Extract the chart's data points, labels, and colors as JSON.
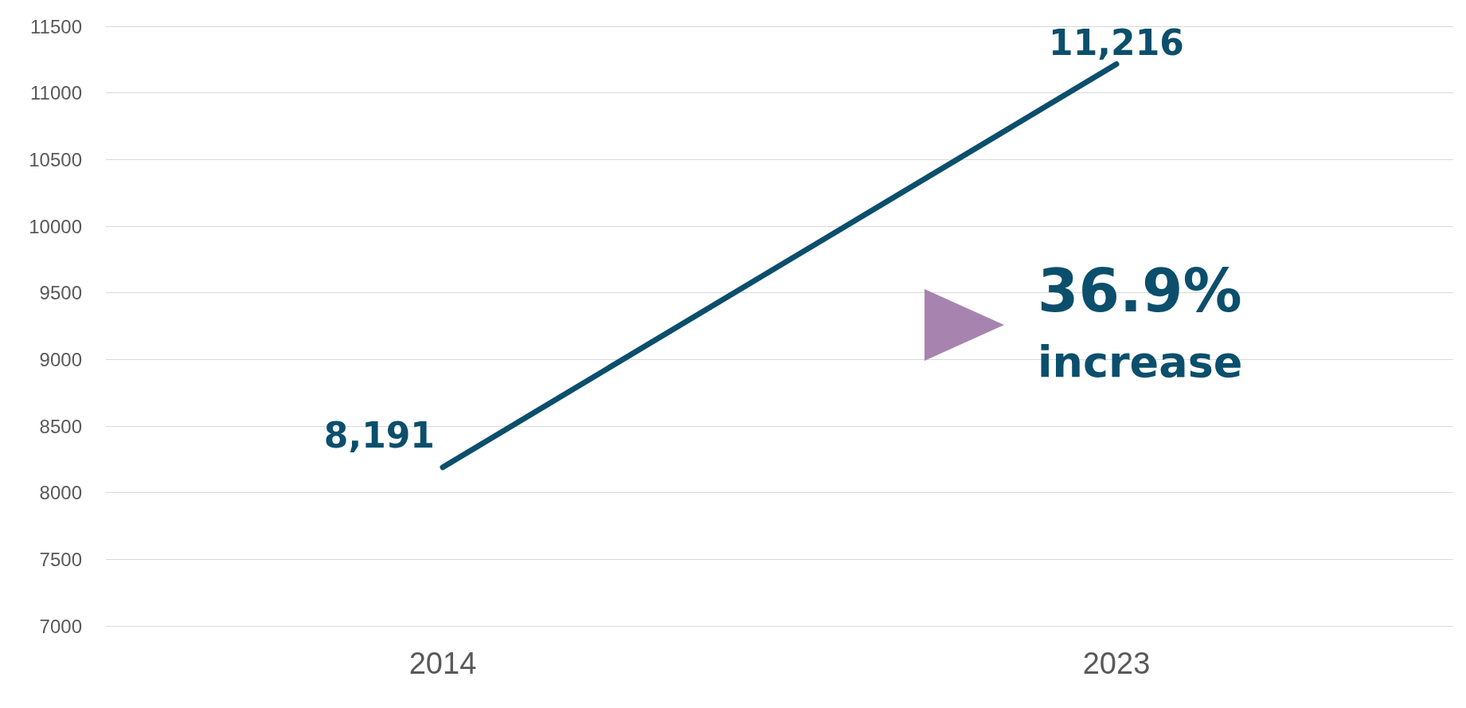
{
  "chart_data": {
    "type": "line",
    "categories": [
      "2014",
      "2023"
    ],
    "series": [
      {
        "color": "#0b4f6c",
        "values": [
          8191,
          11216
        ],
        "value_labels": [
          "8,191",
          "11,216"
        ]
      }
    ],
    "ylim": [
      7000,
      11500
    ],
    "yticks": [
      7000,
      7500,
      8000,
      8500,
      9000,
      9500,
      10000,
      10500,
      11000,
      11500
    ],
    "grid": "y",
    "marker": "none",
    "line_style": "solid",
    "annotations": [
      "36.9%",
      "increase"
    ]
  }
}
